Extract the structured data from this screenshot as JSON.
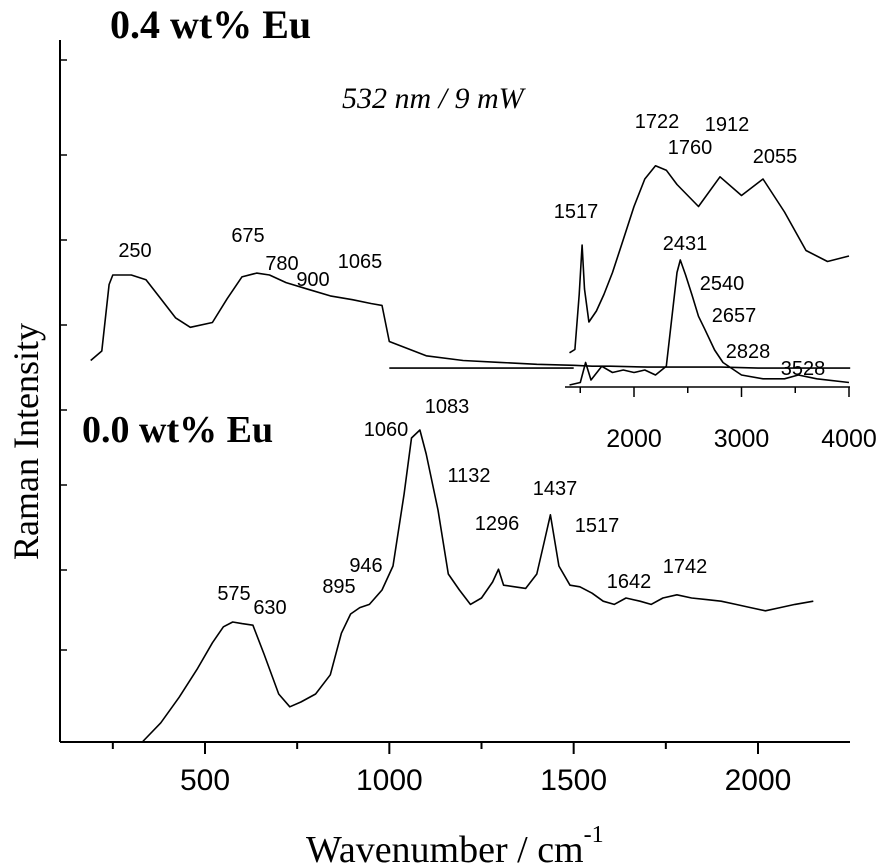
{
  "chart_data": [
    {
      "type": "line",
      "title": "",
      "xlabel": "Wavenumber / cm",
      "xlabel_superscript": "-1",
      "ylabel": "Raman Intensity",
      "xlim": [
        100,
        2250
      ],
      "xticks": [
        500,
        1000,
        1500,
        2000
      ],
      "xtick_labels": [
        "500",
        "1000",
        "1500",
        "2000"
      ],
      "annotation": "532 nm / 9 mW",
      "grid": false,
      "series": [
        {
          "name": "0.4 wt% Eu",
          "x": [
            190,
            220,
            240,
            250,
            300,
            340,
            380,
            420,
            460,
            520,
            560,
            600,
            640,
            675,
            720,
            780,
            840,
            900,
            950,
            980,
            1000,
            1100,
            1200,
            1300,
            1400,
            1500,
            1550,
            1600,
            1700,
            1800,
            1900,
            2000,
            2100,
            2200,
            2250
          ],
          "y": [
            0.1,
            0.2,
            0.9,
            1.0,
            1.0,
            0.95,
            0.75,
            0.55,
            0.45,
            0.5,
            0.75,
            0.98,
            1.02,
            1.0,
            0.92,
            0.85,
            0.78,
            0.74,
            0.7,
            0.68,
            0.3,
            0.15,
            0.1,
            0.08,
            0.06,
            0.05,
            0.04,
            0.04,
            0.03,
            0.03,
            0.03,
            0.02,
            0.02,
            0.02,
            0.02
          ],
          "labels": [
            {
              "x": 250,
              "text": "250"
            },
            {
              "x": 675,
              "text": "675"
            },
            {
              "x": 780,
              "text": "780"
            },
            {
              "x": 900,
              "text": "900"
            },
            {
              "x": 1065,
              "text": "1065"
            }
          ]
        },
        {
          "name": "0.0 wt% Eu",
          "x": [
            330,
            380,
            430,
            480,
            520,
            550,
            575,
            600,
            630,
            660,
            700,
            730,
            760,
            800,
            840,
            870,
            895,
            920,
            946,
            980,
            1010,
            1040,
            1060,
            1083,
            1100,
            1132,
            1160,
            1190,
            1220,
            1250,
            1280,
            1296,
            1310,
            1340,
            1370,
            1400,
            1420,
            1437,
            1460,
            1490,
            1517,
            1550,
            1580,
            1610,
            1642,
            1680,
            1710,
            1742,
            1780,
            1820,
            1860,
            1900,
            1940,
            1980,
            2020,
            2060,
            2100,
            2150
          ],
          "y": [
            0.0,
            0.12,
            0.28,
            0.46,
            0.62,
            0.72,
            0.75,
            0.74,
            0.73,
            0.55,
            0.3,
            0.22,
            0.25,
            0.3,
            0.42,
            0.68,
            0.8,
            0.84,
            0.86,
            0.95,
            1.1,
            1.55,
            1.9,
            1.95,
            1.8,
            1.45,
            1.05,
            0.95,
            0.86,
            0.9,
            1.0,
            1.08,
            0.98,
            0.97,
            0.96,
            1.05,
            1.25,
            1.42,
            1.1,
            0.98,
            0.97,
            0.93,
            0.88,
            0.86,
            0.9,
            0.88,
            0.86,
            0.9,
            0.92,
            0.9,
            0.89,
            0.88,
            0.86,
            0.84,
            0.82,
            0.84,
            0.86,
            0.88
          ],
          "labels": [
            {
              "x": 575,
              "text": "575"
            },
            {
              "x": 630,
              "text": "630"
            },
            {
              "x": 895,
              "text": "895"
            },
            {
              "x": 946,
              "text": "946"
            },
            {
              "x": 1060,
              "text": "1060"
            },
            {
              "x": 1083,
              "text": "1083"
            },
            {
              "x": 1132,
              "text": "1132"
            },
            {
              "x": 1296,
              "text": "1296"
            },
            {
              "x": 1437,
              "text": "1437"
            },
            {
              "x": 1517,
              "text": "1517"
            },
            {
              "x": 1642,
              "text": "1642"
            },
            {
              "x": 1742,
              "text": "1742"
            }
          ]
        }
      ]
    },
    {
      "type": "line",
      "title": "",
      "xlabel": "",
      "ylabel": "",
      "xlim": [
        1400,
        4000
      ],
      "xticks": [
        2000,
        3000,
        4000
      ],
      "xtick_labels": [
        "2000",
        "3000",
        "4000"
      ],
      "series": [
        {
          "name": "",
          "x": [
            1400,
            1450,
            1490,
            1517,
            1540,
            1580,
            1650,
            1720,
            1800,
            1900,
            2000,
            2100,
            2200,
            2300,
            2400,
            2600,
            2800,
            3000,
            3200,
            3400,
            3600,
            3800,
            4000
          ],
          "y": [
            0.02,
            0.05,
            0.55,
            1.0,
            0.6,
            0.3,
            0.4,
            0.55,
            0.75,
            1.05,
            1.35,
            1.6,
            1.72,
            1.68,
            1.55,
            1.35,
            1.62,
            1.45,
            1.6,
            1.3,
            0.95,
            0.85,
            0.9
          ],
          "labels": [
            {
              "x": 1517,
              "text": "1517"
            },
            {
              "x": 1722,
              "text": "1722"
            },
            {
              "x": 1760,
              "text": "1760"
            },
            {
              "x": 1912,
              "text": "1912"
            },
            {
              "x": 2055,
              "text": "2055"
            }
          ]
        },
        {
          "name": "",
          "x": [
            1400,
            1500,
            1550,
            1600,
            1700,
            1800,
            1900,
            2000,
            2100,
            2200,
            2300,
            2400,
            2431,
            2480,
            2540,
            2600,
            2657,
            2750,
            2828,
            3000,
            3200,
            3400,
            3528,
            3700,
            4000
          ],
          "y": [
            0.0,
            0.02,
            0.18,
            0.04,
            0.15,
            0.1,
            0.12,
            0.1,
            0.12,
            0.08,
            0.15,
            0.9,
            1.0,
            0.88,
            0.72,
            0.55,
            0.45,
            0.28,
            0.18,
            0.08,
            0.05,
            0.05,
            0.08,
            0.05,
            0.02
          ],
          "labels": [
            {
              "x": 2431,
              "text": "2431"
            },
            {
              "x": 2540,
              "text": "2540"
            },
            {
              "x": 2657,
              "text": "2657"
            },
            {
              "x": 2828,
              "text": "2828"
            },
            {
              "x": 3528,
              "text": "3528"
            }
          ]
        }
      ]
    }
  ]
}
